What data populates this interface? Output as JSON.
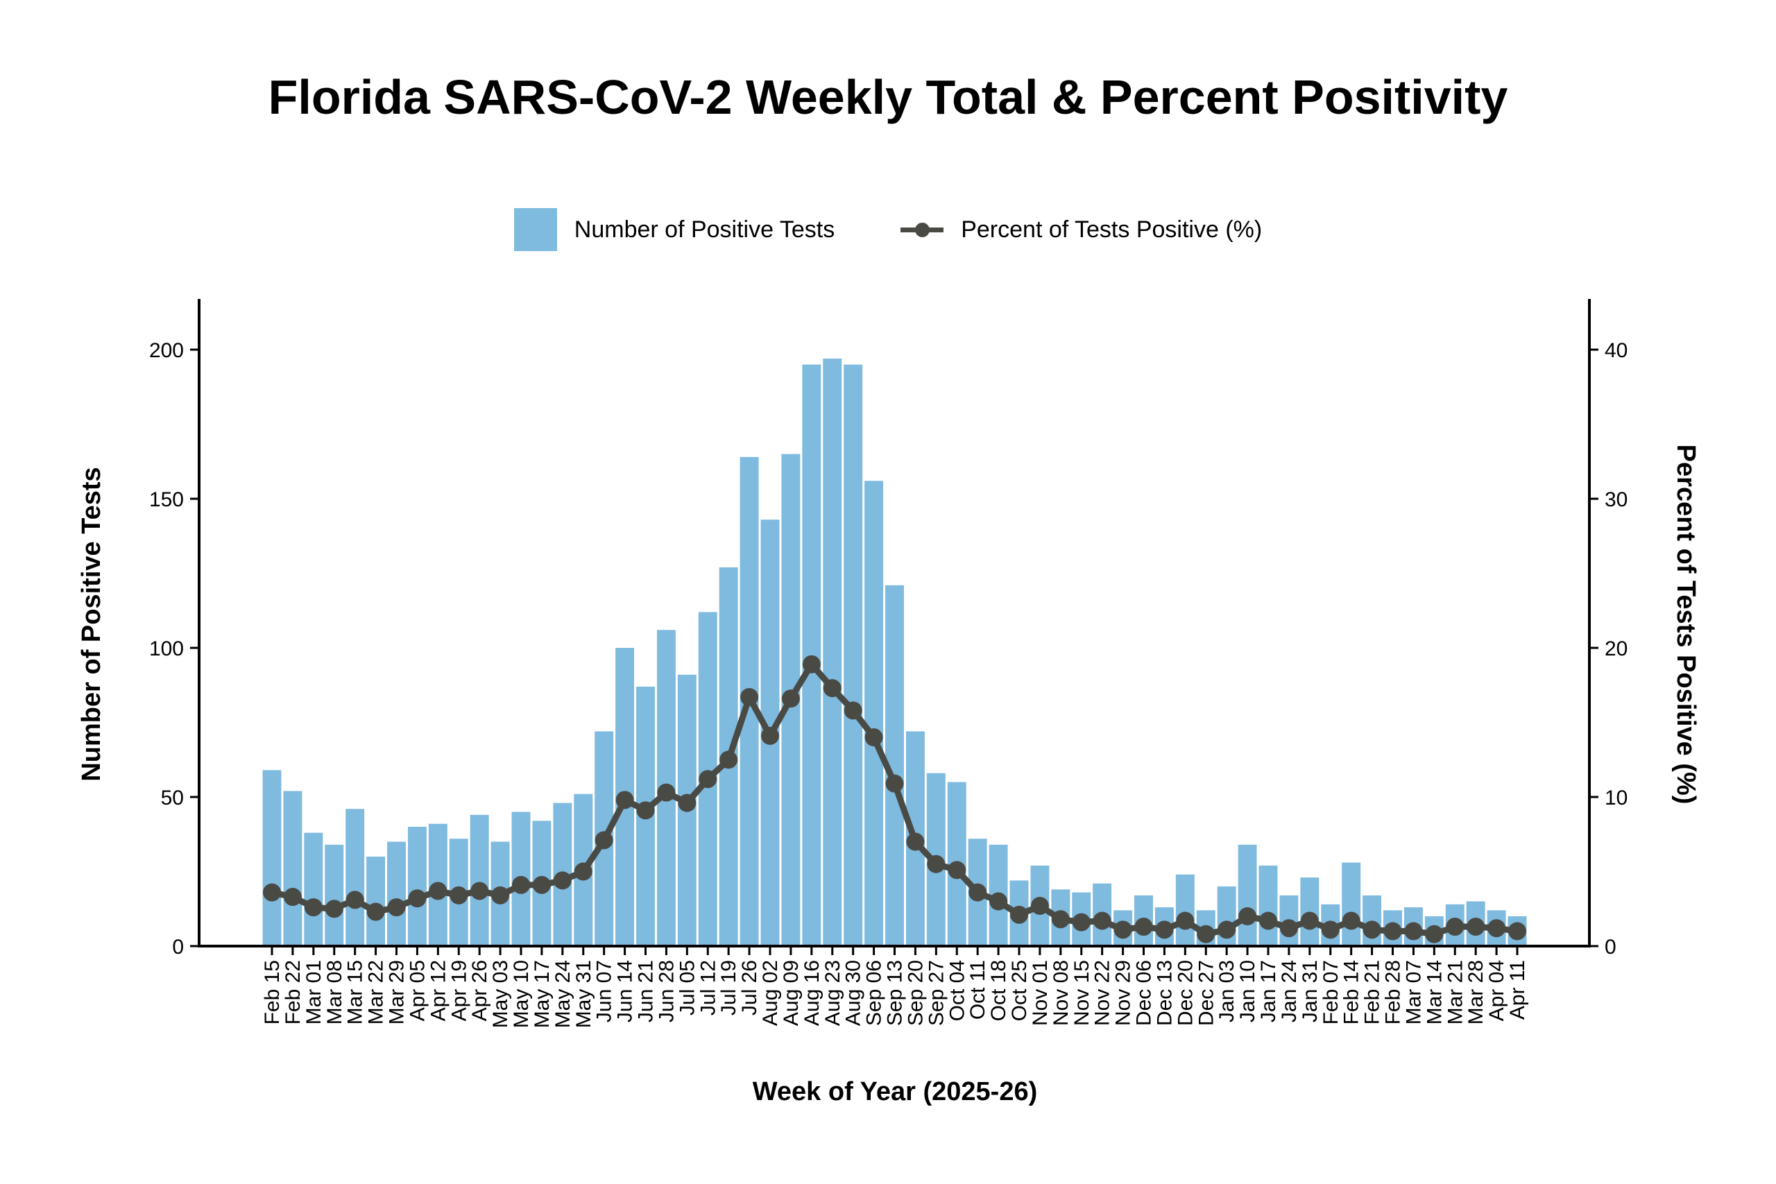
{
  "chart_data": {
    "type": "bar",
    "title": "Florida SARS-CoV-2 Weekly Total & Percent Positivity",
    "xlabel": "Week of Year (2025-26)",
    "ylabel": "Number of Positive Tests",
    "ylabel_right": "Percent of Tests Positive (%)",
    "ylim": [
      0,
      217
    ],
    "ylim_right": [
      0,
      43.4
    ],
    "yticks": [
      0,
      50,
      100,
      150,
      200
    ],
    "yticks_right": [
      0,
      10,
      20,
      30,
      40
    ],
    "grid": false,
    "legend_position": "top-center",
    "legend": [
      "Number of Positive Tests",
      "Percent of Tests Positive (%)"
    ],
    "colors": {
      "bar": "#7fbadf",
      "line": "#4a4a45"
    },
    "categories": [
      "Feb 15",
      "Feb 22",
      "Mar 01",
      "Mar 08",
      "Mar 15",
      "Mar 22",
      "Mar 29",
      "Apr 05",
      "Apr 12",
      "Apr 19",
      "Apr 26",
      "May 03",
      "May 10",
      "May 17",
      "May 24",
      "May 31",
      "Jun 07",
      "Jun 14",
      "Jun 21",
      "Jun 28",
      "Jul 05",
      "Jul 12",
      "Jul 19",
      "Jul 26",
      "Aug 02",
      "Aug 09",
      "Aug 16",
      "Aug 23",
      "Aug 30",
      "Sep 06",
      "Sep 13",
      "Sep 20",
      "Sep 27",
      "Oct 04",
      "Oct 11",
      "Oct 18",
      "Oct 25",
      "Nov 01",
      "Nov 08",
      "Nov 15",
      "Nov 22",
      "Nov 29",
      "Dec 06",
      "Dec 13",
      "Dec 20",
      "Dec 27",
      "Jan 03",
      "Jan 10",
      "Jan 17",
      "Jan 24",
      "Jan 31",
      "Feb 07",
      "Feb 14",
      "Feb 21",
      "Feb 28",
      "Mar 07",
      "Mar 14",
      "Mar 21",
      "Mar 28",
      "Apr 04",
      "Apr 11"
    ],
    "series": [
      {
        "name": "Number of Positive Tests",
        "type": "bar",
        "axis": "left",
        "values": [
          59,
          52,
          38,
          34,
          46,
          30,
          35,
          40,
          41,
          36,
          44,
          35,
          45,
          42,
          48,
          51,
          72,
          100,
          87,
          106,
          91,
          112,
          127,
          164,
          143,
          165,
          195,
          197,
          195,
          156,
          121,
          72,
          58,
          55,
          36,
          34,
          22,
          27,
          19,
          18,
          21,
          12,
          17,
          13,
          24,
          12,
          20,
          34,
          27,
          17,
          23,
          14,
          28,
          17,
          12,
          13,
          10,
          14,
          15,
          12,
          10
        ]
      },
      {
        "name": "Percent of Tests Positive (%)",
        "type": "line",
        "axis": "right",
        "values": [
          3.6,
          3.3,
          2.6,
          2.5,
          3.1,
          2.3,
          2.6,
          3.2,
          3.7,
          3.4,
          3.7,
          3.4,
          4.1,
          4.1,
          4.4,
          5.0,
          7.1,
          9.8,
          9.1,
          10.3,
          9.6,
          11.2,
          12.5,
          16.7,
          14.1,
          16.6,
          18.9,
          17.3,
          15.8,
          14.0,
          10.9,
          7.0,
          5.5,
          5.1,
          3.6,
          3.0,
          2.1,
          2.7,
          1.8,
          1.6,
          1.7,
          1.1,
          1.3,
          1.1,
          1.7,
          0.8,
          1.1,
          2.0,
          1.7,
          1.2,
          1.7,
          1.1,
          1.7,
          1.1,
          1.0,
          1.0,
          0.8,
          1.3,
          1.3,
          1.2,
          1.0
        ]
      }
    ]
  }
}
